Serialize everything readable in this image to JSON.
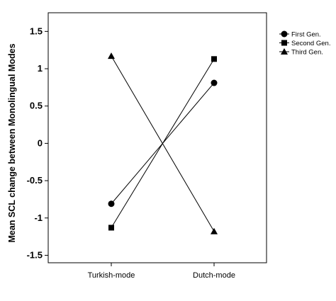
{
  "chart_data": {
    "type": "line",
    "categories": [
      "Turkish-mode",
      "Dutch-mode"
    ],
    "ylabel": "Mean SCL change between Monolingual Modes",
    "xlabel": "",
    "ylim": [
      -1.6,
      1.75
    ],
    "yticks": [
      1.5,
      1,
      0.5,
      0,
      -0.5,
      -1,
      -1.5
    ],
    "ytick_labels": [
      "1.5",
      "1",
      "0.5",
      "0",
      "-0.5",
      "-1",
      "-1.5"
    ],
    "grid": false,
    "legend_position": "top-right",
    "series": [
      {
        "name": "First Gen.",
        "marker": "circle",
        "values": [
          -0.81,
          0.81
        ]
      },
      {
        "name": "Second Gen.",
        "marker": "square",
        "values": [
          -1.13,
          1.13
        ]
      },
      {
        "name": "Third Gen.",
        "marker": "triangle",
        "values": [
          1.17,
          -1.18
        ]
      }
    ],
    "colors": {
      "line": "#000000",
      "marker": "#000000",
      "axis": "#000000"
    }
  }
}
